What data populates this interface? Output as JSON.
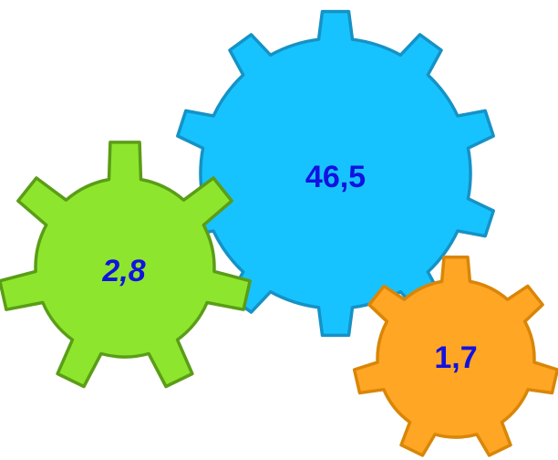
{
  "colors": {
    "text": "#1212e0",
    "gear_large_fill": "#17c3ff",
    "gear_large_stroke": "#1592c6",
    "gear_left_fill": "#8de62d",
    "gear_left_stroke": "#5a9d17",
    "gear_small_fill": "#ffa624",
    "gear_small_stroke": "#d98608"
  },
  "gears": {
    "large": {
      "label": "46,5"
    },
    "left": {
      "label": "2,8"
    },
    "small": {
      "label": "1,7"
    }
  }
}
